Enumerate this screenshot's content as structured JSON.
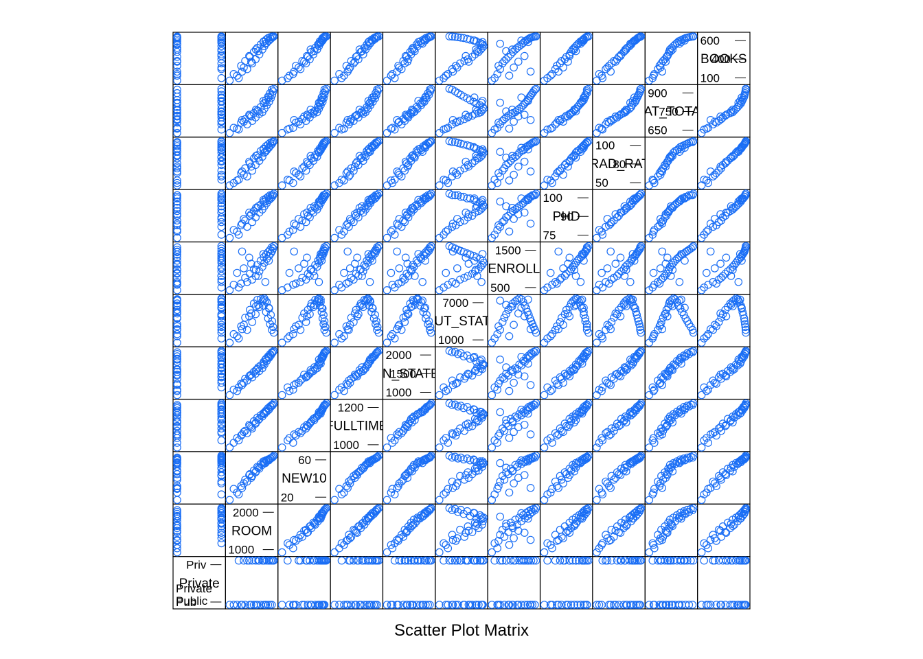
{
  "chart_data": {
    "type": "scatter",
    "title": "Scatter Plot Matrix",
    "point_color": "#1a6ef5",
    "variables": [
      {
        "name": "Private",
        "ticks": [
          "Pub",
          "Priv"
        ],
        "range_labels": [
          "Public",
          "Private"
        ]
      },
      {
        "name": "ROOM",
        "ticks": [
          "1000",
          "2000"
        ]
      },
      {
        "name": "NEW10",
        "ticks": [
          "20",
          "60"
        ]
      },
      {
        "name": "FULLTIME",
        "ticks": [
          "1000",
          "1200"
        ]
      },
      {
        "name": "IN_STATE",
        "ticks": [
          "1000",
          "1500",
          "2000"
        ]
      },
      {
        "name": "OUT_STATE",
        "ticks": [
          "1000",
          "7000"
        ]
      },
      {
        "name": "ENROLL",
        "ticks": [
          "500",
          "1500"
        ]
      },
      {
        "name": "PHD",
        "ticks": [
          "75",
          "90",
          "100"
        ]
      },
      {
        "name": "GRAD_RATE",
        "ticks": [
          "50",
          "80",
          "100"
        ]
      },
      {
        "name": "SAT_TOTAL",
        "ticks": [
          "650",
          "750",
          "900"
        ]
      },
      {
        "name": "BOOKS",
        "ticks": [
          "100",
          "400",
          "600"
        ]
      }
    ],
    "values": [
      [
        0,
        980,
        18,
        1010,
        1030,
        1100,
        430,
        72,
        45,
        640,
        120
      ],
      [
        1,
        1250,
        24,
        1040,
        1200,
        1700,
        520,
        74,
        52,
        660,
        150
      ],
      [
        0,
        1100,
        30,
        1030,
        1150,
        2300,
        610,
        77,
        48,
        670,
        200
      ],
      [
        1,
        1500,
        38,
        1070,
        1350,
        2900,
        700,
        79,
        56,
        690,
        260
      ],
      [
        0,
        1320,
        33,
        1060,
        1280,
        3400,
        650,
        80,
        60,
        700,
        300
      ],
      [
        1,
        1650,
        44,
        1090,
        1420,
        4000,
        780,
        82,
        63,
        710,
        330
      ],
      [
        0,
        1440,
        40,
        1080,
        1390,
        4600,
        840,
        83,
        66,
        720,
        360
      ],
      [
        1,
        1750,
        48,
        1110,
        1500,
        5100,
        900,
        85,
        70,
        730,
        380
      ],
      [
        0,
        1580,
        46,
        1100,
        1460,
        5700,
        970,
        86,
        72,
        740,
        410
      ],
      [
        1,
        1860,
        52,
        1130,
        1560,
        6100,
        1050,
        88,
        75,
        750,
        440
      ],
      [
        0,
        1700,
        50,
        1120,
        1540,
        6600,
        1120,
        89,
        78,
        755,
        470
      ],
      [
        1,
        1950,
        56,
        1140,
        1620,
        6900,
        1200,
        90,
        80,
        760,
        500
      ],
      [
        0,
        1800,
        54,
        1135,
        1600,
        7100,
        1260,
        91,
        82,
        770,
        520
      ],
      [
        1,
        2010,
        58,
        1150,
        1700,
        7300,
        1330,
        92,
        85,
        780,
        540
      ],
      [
        0,
        1900,
        57,
        1145,
        1680,
        7200,
        1400,
        93,
        87,
        790,
        560
      ],
      [
        1,
        2080,
        60,
        1160,
        1780,
        6800,
        1460,
        94,
        88,
        800,
        580
      ],
      [
        0,
        1990,
        59,
        1155,
        1760,
        6300,
        1510,
        95,
        90,
        810,
        600
      ],
      [
        1,
        2150,
        62,
        1170,
        1850,
        5900,
        1560,
        96,
        92,
        820,
        610
      ],
      [
        0,
        2060,
        61,
        1165,
        1830,
        5400,
        1600,
        97,
        93,
        830,
        620
      ],
      [
        1,
        2200,
        63,
        1180,
        1900,
        5000,
        1640,
        97,
        94,
        840,
        630
      ],
      [
        0,
        2120,
        62,
        1175,
        1880,
        4500,
        1680,
        98,
        95,
        850,
        640
      ],
      [
        1,
        2240,
        64,
        1185,
        1950,
        4100,
        1720,
        98,
        96,
        860,
        645
      ],
      [
        0,
        2180,
        63,
        1182,
        1930,
        3700,
        1760,
        99,
        97,
        870,
        650
      ],
      [
        1,
        2270,
        65,
        1190,
        1980,
        3300,
        1800,
        99,
        98,
        880,
        655
      ],
      [
        0,
        2230,
        64,
        1188,
        1970,
        2900,
        1840,
        99,
        98,
        890,
        658
      ],
      [
        1,
        2290,
        66,
        1195,
        2000,
        2500,
        1880,
        100,
        99,
        895,
        660
      ],
      [
        0,
        1200,
        26,
        1050,
        1120,
        2000,
        1000,
        76,
        51,
        665,
        180
      ],
      [
        1,
        1400,
        36,
        1075,
        1300,
        3600,
        1150,
        84,
        58,
        705,
        280
      ],
      [
        0,
        1620,
        42,
        1095,
        1480,
        5200,
        1300,
        87,
        68,
        735,
        350
      ],
      [
        1,
        1830,
        53,
        1125,
        1640,
        6400,
        900,
        92,
        79,
        765,
        480
      ],
      [
        0,
        2040,
        58,
        1158,
        1810,
        7000,
        700,
        95,
        86,
        815,
        570
      ],
      [
        1,
        2140,
        61,
        1168,
        1870,
        6000,
        1400,
        97,
        91,
        845,
        610
      ],
      [
        0,
        1350,
        31,
        1065,
        1250,
        3000,
        1700,
        81,
        62,
        715,
        230
      ],
      [
        1,
        1560,
        45,
        1105,
        1440,
        4800,
        1500,
        88,
        74,
        745,
        420
      ],
      [
        0,
        1760,
        49,
        1115,
        1580,
        6200,
        1100,
        91,
        81,
        775,
        500
      ],
      [
        1,
        1980,
        60,
        1152,
        1720,
        7150,
        1620,
        96,
        89,
        825,
        590
      ]
    ]
  }
}
